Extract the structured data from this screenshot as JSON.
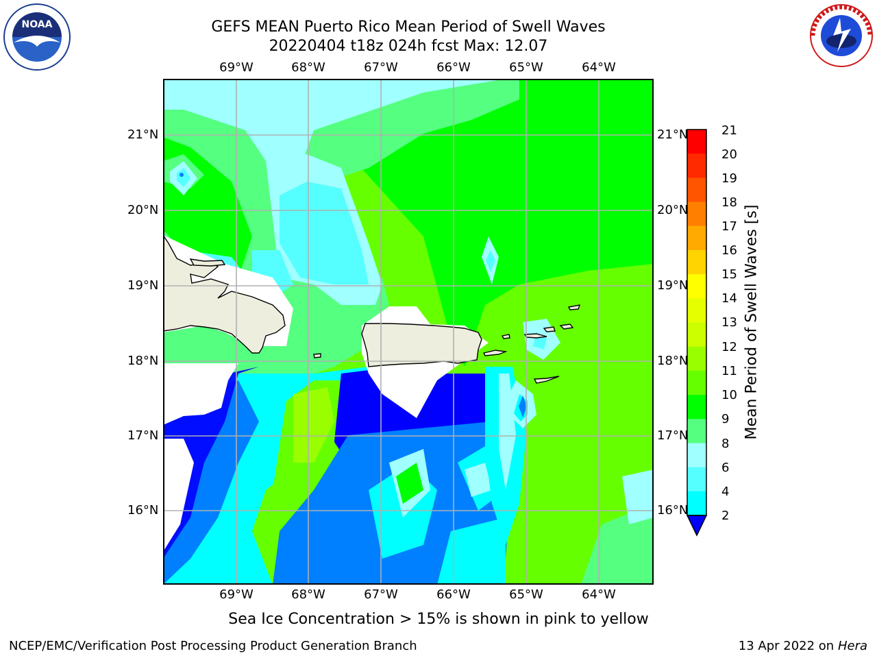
{
  "header": {
    "title_line1": "GEFS MEAN Puerto Rico Mean Period of Swell Waves",
    "title_line2": "20220404 t18z 024h fcst   Max: 12.07"
  },
  "logos": {
    "left": "NOAA",
    "right": "NATIONAL WEATHER SERVICE"
  },
  "axes": {
    "lon_ticks": [
      "69°W",
      "68°W",
      "67°W",
      "66°W",
      "65°W",
      "64°W"
    ],
    "lat_ticks": [
      "21°N",
      "20°N",
      "19°N",
      "18°N",
      "17°N",
      "16°N"
    ]
  },
  "colorbar": {
    "title": "Mean Period of Swell Waves [s]",
    "labels": [
      "21",
      "20",
      "19",
      "18",
      "17",
      "16",
      "15",
      "14",
      "13",
      "12",
      "11",
      "10",
      "9",
      "8",
      "6",
      "4",
      "2"
    ],
    "colors": [
      "#ff0000",
      "#ff2a00",
      "#ff5500",
      "#ff8000",
      "#ffaa00",
      "#ffd400",
      "#ffff00",
      "#e6ff00",
      "#ccff00",
      "#99ff00",
      "#66ff00",
      "#00ff00",
      "#55ff80",
      "#a0ffff",
      "#55ffff",
      "#00ffff",
      "#0080ff"
    ],
    "under_color": "#0000ff"
  },
  "map": {
    "region": "Puerto Rico",
    "land_color": "#eeeede",
    "grid_on": true
  },
  "note": "Sea Ice Concentration > 15% is shown in pink to yellow",
  "footer": {
    "left": "NCEP/EMC/Verification Post Processing Product Generation Branch",
    "date": "13 Apr 2022 on ",
    "host": "Hera"
  }
}
